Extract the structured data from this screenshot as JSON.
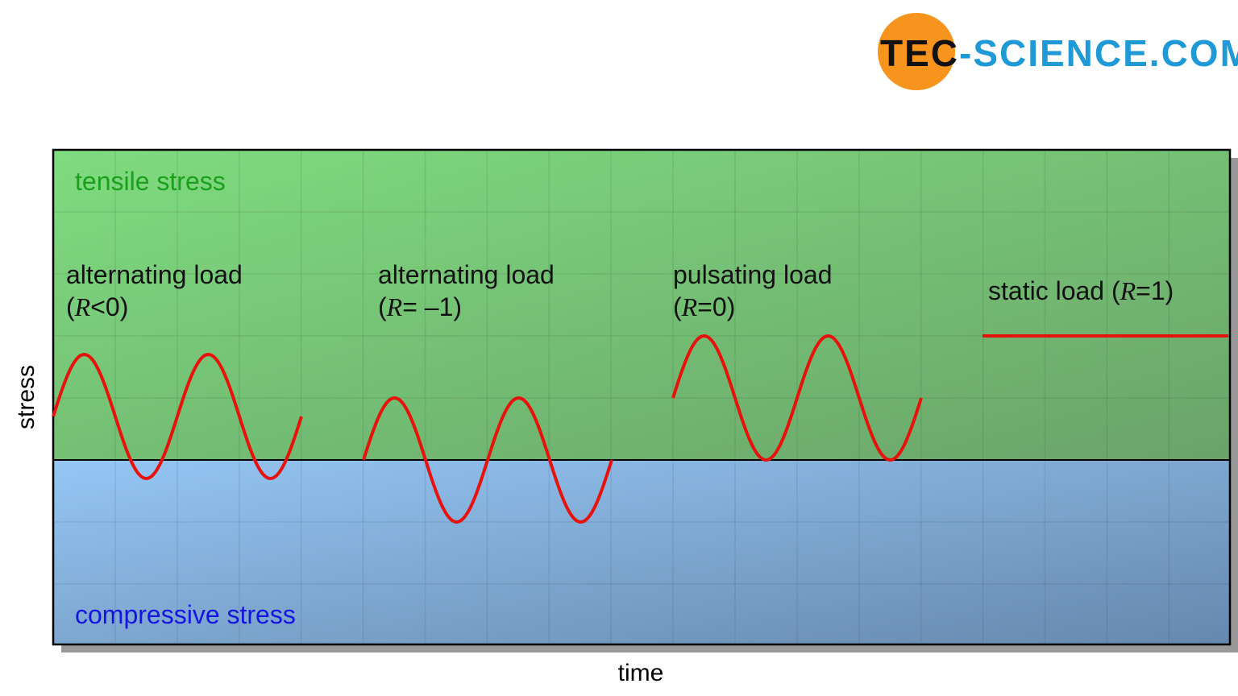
{
  "logo": {
    "dark": "TEC",
    "light": "-SCIENCE.COM"
  },
  "regions": {
    "tensile": "tensile stress",
    "compressive": "compressive stress"
  },
  "axes": {
    "y": "stress",
    "x": "time"
  },
  "loads": [
    {
      "lines": [
        [
          "alternating load"
        ],
        [
          "(",
          "R",
          "<0)"
        ]
      ]
    },
    {
      "lines": [
        [
          "alternating load"
        ],
        [
          "(",
          "R",
          "= –1)"
        ]
      ]
    },
    {
      "lines": [
        [
          "pulsating load"
        ],
        [
          "(",
          "R",
          "=0)"
        ]
      ]
    },
    {
      "lines": [
        [
          "static load (",
          "R",
          "=1)"
        ]
      ]
    }
  ]
}
